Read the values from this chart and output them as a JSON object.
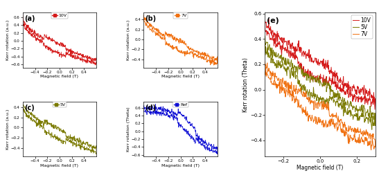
{
  "colors": {
    "10V": "#d41a1a",
    "7V": "#f07010",
    "5V": "#7a7a00",
    "Ref": "#1010d4"
  },
  "xlabel_small": "Magnetic field (T)",
  "ylabel_small_au": "Kerr rotation (a.u.)",
  "ylabel_d": "Kerr rotation (Theta)",
  "xlabel_large": "Magnetic field (T)",
  "ylabel_large": "Kerr rotation (Theta)",
  "seed": 7,
  "font_size_label": 4.5,
  "font_size_panel": 7,
  "font_size_legend": 4.5,
  "lw_small": 0.55,
  "lw_large": 0.7
}
